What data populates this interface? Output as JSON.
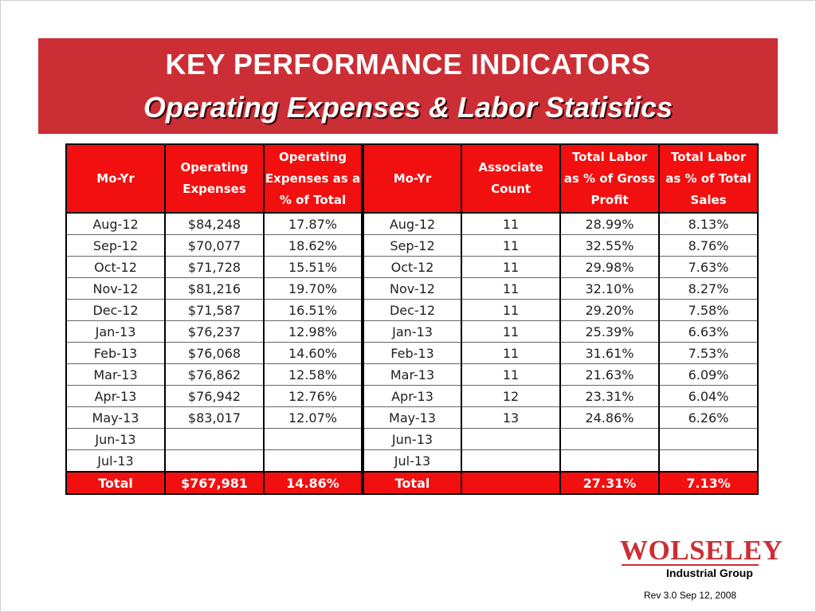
{
  "header": {
    "title": "KEY PERFORMANCE INDICATORS",
    "subtitle": "Operating Expenses & Labor Statistics"
  },
  "table": {
    "headers": [
      [
        "Mo-Yr"
      ],
      [
        "Operating",
        "Expenses"
      ],
      [
        "Operating",
        "Expenses as a",
        "% of Total"
      ],
      [
        "Mo-Yr"
      ],
      [
        "Associate",
        "Count"
      ],
      [
        "Total Labor",
        "as % of Gross",
        "Profit"
      ],
      [
        "Total Labor",
        "as % of Total",
        "Sales"
      ]
    ],
    "rows": [
      [
        "Aug-12",
        "$84,248",
        "17.87%",
        "Aug-12",
        "11",
        "28.99%",
        "8.13%"
      ],
      [
        "Sep-12",
        "$70,077",
        "18.62%",
        "Sep-12",
        "11",
        "32.55%",
        "8.76%"
      ],
      [
        "Oct-12",
        "$71,728",
        "15.51%",
        "Oct-12",
        "11",
        "29.98%",
        "7.63%"
      ],
      [
        "Nov-12",
        "$81,216",
        "19.70%",
        "Nov-12",
        "11",
        "32.10%",
        "8.27%"
      ],
      [
        "Dec-12",
        "$71,587",
        "16.51%",
        "Dec-12",
        "11",
        "29.20%",
        "7.58%"
      ],
      [
        "Jan-13",
        "$76,237",
        "12.98%",
        "Jan-13",
        "11",
        "25.39%",
        "6.63%"
      ],
      [
        "Feb-13",
        "$76,068",
        "14.60%",
        "Feb-13",
        "11",
        "31.61%",
        "7.53%"
      ],
      [
        "Mar-13",
        "$76,862",
        "12.58%",
        "Mar-13",
        "11",
        "21.63%",
        "6.09%"
      ],
      [
        "Apr-13",
        "$76,942",
        "12.76%",
        "Apr-13",
        "12",
        "23.31%",
        "6.04%"
      ],
      [
        "May-13",
        "$83,017",
        "12.07%",
        "May-13",
        "13",
        "24.86%",
        "6.26%"
      ],
      [
        "Jun-13",
        "",
        "",
        "Jun-13",
        "",
        "",
        ""
      ],
      [
        "Jul-13",
        "",
        "",
        "Jul-13",
        "",
        "",
        ""
      ]
    ],
    "total": [
      "Total",
      "$767,981",
      "14.86%",
      "Total",
      "",
      "27.31%",
      "7.13%"
    ]
  },
  "logo": {
    "name": "WOLSELEY",
    "subtitle": "Industrial Group"
  },
  "footer": {
    "revision": "Rev 3.0 Sep 12, 2008"
  },
  "colors": {
    "banner": "#cc2e35",
    "table_header": "#f20f0f",
    "logo": "#cc2e35"
  }
}
